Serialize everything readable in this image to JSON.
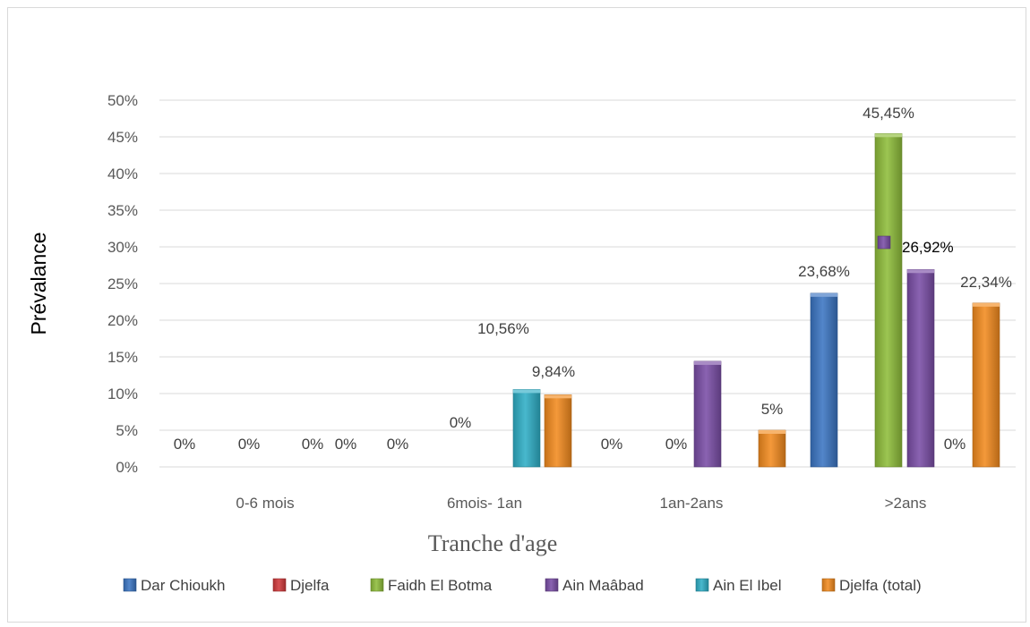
{
  "chart_data": {
    "type": "bar",
    "title": "",
    "xlabel": "Tranche d'age",
    "ylabel": "Prévalance",
    "ylim": [
      0,
      50
    ],
    "y_ticks": [
      "0%",
      "5%",
      "10%",
      "15%",
      "20%",
      "25%",
      "30%",
      "35%",
      "40%",
      "45%",
      "50%"
    ],
    "categories": [
      "0-6 mois",
      "6mois- 1an",
      "1an-2ans",
      ">2ans"
    ],
    "grid": true,
    "legend_position": "bottom",
    "series": [
      {
        "name": "Dar Chioukh",
        "color": "#3b75c3",
        "values": [
          0,
          0,
          0,
          23.68
        ],
        "labels": [
          "0%",
          "0%",
          "0%",
          "23,68%"
        ]
      },
      {
        "name": "Djelfa",
        "color": "#d0393b",
        "values": [
          0,
          0,
          null,
          null
        ],
        "labels": [
          "0%",
          "0%",
          "",
          ""
        ]
      },
      {
        "name": "Faidh El Botma",
        "color": "#8fbd3a",
        "values": [
          0,
          null,
          null,
          45.45
        ],
        "labels": [
          "0%",
          "",
          "",
          "45,45%"
        ]
      },
      {
        "name": "Ain Maâbad",
        "color": "#7a4ea6",
        "values": [
          null,
          null,
          14.4,
          26.92
        ],
        "labels": [
          "",
          "",
          "",
          "26,92%"
        ]
      },
      {
        "name": "Ain El Ibel",
        "color": "#2faec6",
        "values": [
          0,
          10.56,
          0,
          0
        ],
        "labels": [
          "0%",
          "10,56%",
          "0%",
          "0%"
        ]
      },
      {
        "name": "Djelfa (total)",
        "color": "#f28b1f",
        "values": [
          null,
          9.84,
          5,
          22.34
        ],
        "labels": [
          "",
          "9,84%",
          "5%",
          "22,34%"
        ]
      }
    ]
  }
}
